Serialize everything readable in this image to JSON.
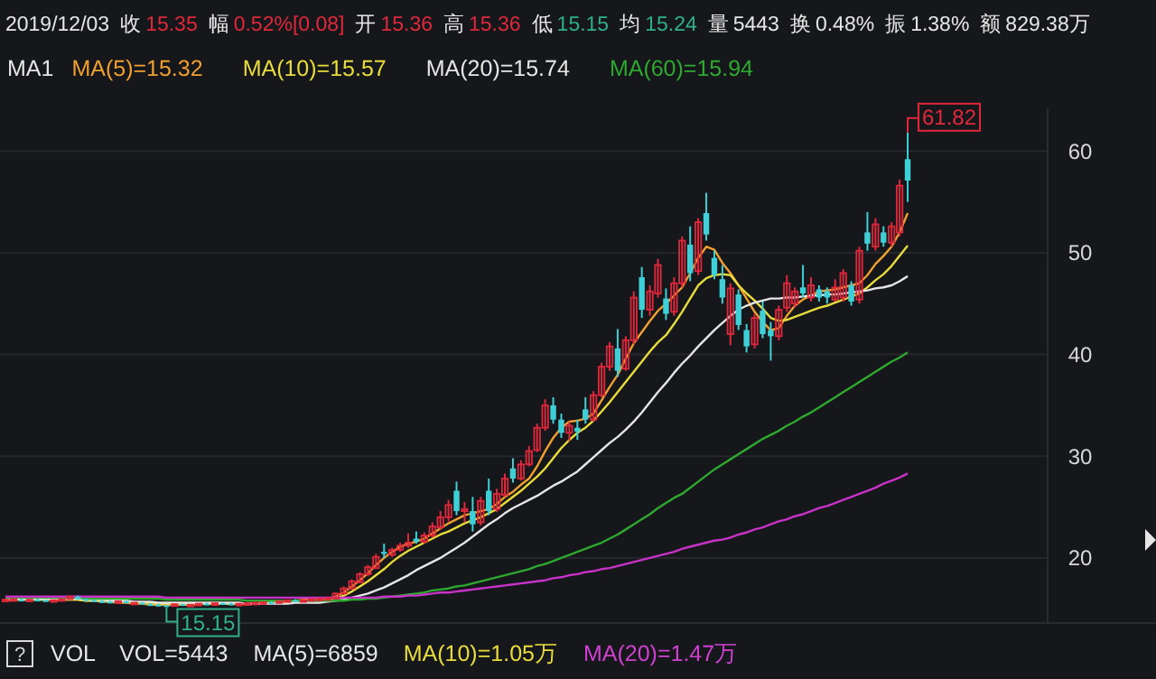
{
  "chart_data": {
    "type": "candlestick",
    "categories": [
      null,
      null,
      null,
      null,
      null,
      null,
      null,
      null,
      null,
      null,
      null,
      null,
      null,
      null,
      null,
      null,
      null,
      null,
      null,
      null,
      null,
      null,
      null,
      null,
      null,
      null,
      null,
      null,
      null,
      null,
      null,
      null,
      null,
      null,
      null,
      null,
      null,
      null,
      null,
      null,
      null,
      null,
      null,
      null,
      null,
      null,
      null,
      null,
      null,
      null,
      null,
      null,
      null,
      null,
      null,
      null,
      null,
      null,
      null,
      null,
      null,
      null,
      null,
      null,
      null,
      null,
      null,
      null,
      null,
      null,
      null,
      null,
      null,
      null,
      null,
      null,
      null,
      null,
      null,
      null,
      null,
      null,
      null,
      null,
      null,
      null,
      null,
      null,
      null,
      null,
      null,
      null,
      null,
      null,
      null,
      null,
      null,
      null,
      null,
      null,
      null,
      null,
      null,
      null,
      null,
      null,
      null,
      null,
      null,
      null,
      null,
      null,
      null
    ],
    "colors": [
      "#e0283c",
      "#e0283c",
      "#3fcfd6",
      "#e0283c",
      "#3fcfd6",
      "#3fcfd6",
      "#e0283c",
      "#e0283c",
      "#e0283c",
      "#3fcfd6",
      "#3fcfd6",
      "#3fcfd6",
      "#3fcfd6",
      "#3fcfd6",
      "#e0283c",
      "#3fcfd6",
      "#e0283c",
      "#3fcfd6",
      "#3fcfd6",
      "#3fcfd6",
      "#3fcfd6",
      "#e0283c",
      "#3fcfd6",
      "#e0283c",
      "#e0283c",
      "#3fcfd6",
      "#e0283c",
      "#3fcfd6",
      "#3fcfd6",
      "#e0283c",
      "#e0283c",
      "#e0283c",
      "#e0283c",
      "#3fcfd6",
      "#e0283c",
      "#e0283c",
      "#3fcfd6",
      "#e0283c",
      "#e0283c",
      "#e0283c",
      "#e0283c",
      "#e0283c",
      "#e0283c",
      "#e0283c",
      "#e0283c",
      "#e0283c",
      "#e0283c",
      "#3fcfd6",
      "#e0283c",
      "#e0283c",
      "#e0283c",
      "#3fcfd6",
      "#e0283c",
      "#e0283c",
      "#e0283c",
      "#e0283c",
      "#3fcfd6",
      "#e0283c",
      "#3fcfd6",
      "#e0283c",
      "#3fcfd6",
      "#e0283c",
      "#e0283c",
      "#3fcfd6",
      "#e0283c",
      "#e0283c",
      "#e0283c",
      "#e0283c",
      "#3fcfd6",
      "#3fcfd6",
      "#e0283c",
      "#3fcfd6",
      "#3fcfd6",
      "#e0283c",
      "#e0283c",
      "#e0283c",
      "#3fcfd6",
      "#e0283c",
      "#e0283c",
      "#3fcfd6",
      "#e0283c",
      "#e0283c",
      "#3fcfd6",
      "#e0283c",
      "#e0283c",
      "#3fcfd6",
      "#e0283c",
      "#3fcfd6",
      "#3fcfd6",
      "#3fcfd6",
      "#e0283c",
      "#3fcfd6",
      "#3fcfd6",
      "#e0283c",
      "#3fcfd6",
      "#3fcfd6",
      "#e0283c",
      "#e0283c",
      "#e0283c",
      "#3fcfd6",
      "#e0283c",
      "#3fcfd6",
      "#3fcfd6",
      "#e0283c",
      "#e0283c",
      "#3fcfd6",
      "#e0283c",
      "#3fcfd6",
      "#e0283c",
      "#3fcfd6",
      "#e0283c",
      "#e0283c",
      "#3fcfd6"
    ],
    "ohlc": [
      [
        15.9,
        16.0,
        15.8,
        15.9
      ],
      [
        15.9,
        16.0,
        15.8,
        15.95
      ],
      [
        15.9,
        16.0,
        15.8,
        15.85
      ],
      [
        15.85,
        15.95,
        15.75,
        15.9
      ],
      [
        15.9,
        16.0,
        15.8,
        15.85
      ],
      [
        15.85,
        15.9,
        15.7,
        15.8
      ],
      [
        15.8,
        15.9,
        15.7,
        15.85
      ],
      [
        15.85,
        16.0,
        15.8,
        15.95
      ],
      [
        15.95,
        16.3,
        15.9,
        16.2
      ],
      [
        16.2,
        16.3,
        15.9,
        15.95
      ],
      [
        15.95,
        16.0,
        15.8,
        15.85
      ],
      [
        15.85,
        15.9,
        15.7,
        15.75
      ],
      [
        15.75,
        15.85,
        15.6,
        15.7
      ],
      [
        15.7,
        15.8,
        15.6,
        15.65
      ],
      [
        15.65,
        15.8,
        15.6,
        15.75
      ],
      [
        15.75,
        15.8,
        15.5,
        15.55
      ],
      [
        15.55,
        15.65,
        15.45,
        15.6
      ],
      [
        15.6,
        15.65,
        15.4,
        15.45
      ],
      [
        15.45,
        15.55,
        15.3,
        15.4
      ],
      [
        15.4,
        15.5,
        15.25,
        15.35
      ],
      [
        15.36,
        15.36,
        15.15,
        15.35
      ],
      [
        15.35,
        15.5,
        15.3,
        15.45
      ],
      [
        15.45,
        15.5,
        15.3,
        15.35
      ],
      [
        15.35,
        15.45,
        15.3,
        15.4
      ],
      [
        15.4,
        15.55,
        15.35,
        15.5
      ],
      [
        15.5,
        15.6,
        15.4,
        15.45
      ],
      [
        15.45,
        15.6,
        15.4,
        15.55
      ],
      [
        15.55,
        15.6,
        15.4,
        15.5
      ],
      [
        15.5,
        15.6,
        15.4,
        15.45
      ],
      [
        15.45,
        15.55,
        15.35,
        15.5
      ],
      [
        15.5,
        15.6,
        15.4,
        15.55
      ],
      [
        15.55,
        15.7,
        15.5,
        15.6
      ],
      [
        15.6,
        15.7,
        15.5,
        15.65
      ],
      [
        15.65,
        15.75,
        15.55,
        15.6
      ],
      [
        15.6,
        15.8,
        15.55,
        15.75
      ],
      [
        15.75,
        15.9,
        15.7,
        15.85
      ],
      [
        15.85,
        15.95,
        15.75,
        15.8
      ],
      [
        15.8,
        15.9,
        15.7,
        15.85
      ],
      [
        15.85,
        16.0,
        15.8,
        15.95
      ],
      [
        15.95,
        16.1,
        15.9,
        16.0
      ],
      [
        16.0,
        16.2,
        15.9,
        16.05
      ],
      [
        16.0,
        16.6,
        15.9,
        16.5
      ],
      [
        16.5,
        17.2,
        16.4,
        17.0
      ],
      [
        17.0,
        17.9,
        16.9,
        17.7
      ],
      [
        17.6,
        18.6,
        17.5,
        18.4
      ],
      [
        18.4,
        19.3,
        18.2,
        19.1
      ],
      [
        19.0,
        20.4,
        18.9,
        20.1
      ],
      [
        20.6,
        21.4,
        20.0,
        20.4
      ],
      [
        20.3,
        21.0,
        20.1,
        20.8
      ],
      [
        20.8,
        21.5,
        20.6,
        21.2
      ],
      [
        21.2,
        22.4,
        21.0,
        21.5
      ],
      [
        21.9,
        22.6,
        21.4,
        21.6
      ],
      [
        21.6,
        22.5,
        21.4,
        22.2
      ],
      [
        22.2,
        23.5,
        22.0,
        23.1
      ],
      [
        23.0,
        24.6,
        22.8,
        24.0
      ],
      [
        24.0,
        25.7,
        23.6,
        25.2
      ],
      [
        26.6,
        27.5,
        24.2,
        24.6
      ],
      [
        24.6,
        25.5,
        23.5,
        24.8
      ],
      [
        24.6,
        26.0,
        22.6,
        23.3
      ],
      [
        23.5,
        26.0,
        23.2,
        25.6
      ],
      [
        26.6,
        27.8,
        24.2,
        24.6
      ],
      [
        24.8,
        26.8,
        24.5,
        26.3
      ],
      [
        26.2,
        28.3,
        26.0,
        27.8
      ],
      [
        28.8,
        29.8,
        27.4,
        27.8
      ],
      [
        27.8,
        29.6,
        27.6,
        29.2
      ],
      [
        29.2,
        31.0,
        29.0,
        30.5
      ],
      [
        30.6,
        33.2,
        30.4,
        32.8
      ],
      [
        32.8,
        35.6,
        32.5,
        35.0
      ],
      [
        35.0,
        35.8,
        33.2,
        33.6
      ],
      [
        33.6,
        34.2,
        31.8,
        32.3
      ],
      [
        32.3,
        33.4,
        31.5,
        33.0
      ],
      [
        32.8,
        33.6,
        31.6,
        32.4
      ],
      [
        34.6,
        35.8,
        33.2,
        33.6
      ],
      [
        33.6,
        36.4,
        33.4,
        36.0
      ],
      [
        36.0,
        39.2,
        35.8,
        38.8
      ],
      [
        38.8,
        41.2,
        38.4,
        40.8
      ],
      [
        40.6,
        42.5,
        37.8,
        38.4
      ],
      [
        38.6,
        41.8,
        38.4,
        41.4
      ],
      [
        41.4,
        46.2,
        41.0,
        45.6
      ],
      [
        47.6,
        48.6,
        43.6,
        44.4
      ],
      [
        44.4,
        46.8,
        43.8,
        46.2
      ],
      [
        46.0,
        49.4,
        45.6,
        48.8
      ],
      [
        45.5,
        46.5,
        43.4,
        44.0
      ],
      [
        44.2,
        47.6,
        43.8,
        47.0
      ],
      [
        47.0,
        51.6,
        46.6,
        51.2
      ],
      [
        50.8,
        52.6,
        47.2,
        48.0
      ],
      [
        48.2,
        53.4,
        47.8,
        53.0
      ],
      [
        53.9,
        55.9,
        51.2,
        51.8
      ],
      [
        49.5,
        50.2,
        47.4,
        47.8
      ],
      [
        47.4,
        48.8,
        45.0,
        45.6
      ],
      [
        42.0,
        47.0,
        40.9,
        46.5
      ],
      [
        45.9,
        46.4,
        42.4,
        42.9
      ],
      [
        42.4,
        43.0,
        40.2,
        40.8
      ],
      [
        41.0,
        44.0,
        40.6,
        43.6
      ],
      [
        44.3,
        45.2,
        41.6,
        42.0
      ],
      [
        42.4,
        43.2,
        39.4,
        41.8
      ],
      [
        41.8,
        44.8,
        41.4,
        44.4
      ],
      [
        44.6,
        47.8,
        44.2,
        47.0
      ],
      [
        45.0,
        46.6,
        44.6,
        46.2
      ],
      [
        46.6,
        48.8,
        45.6,
        46.0
      ],
      [
        45.6,
        47.6,
        45.2,
        46.8
      ],
      [
        46.4,
        46.8,
        45.2,
        45.6
      ],
      [
        46.2,
        46.6,
        45.0,
        45.6
      ],
      [
        45.4,
        47.4,
        45.2,
        46.6
      ],
      [
        45.6,
        48.4,
        45.2,
        48.0
      ],
      [
        46.8,
        47.2,
        44.8,
        45.2
      ],
      [
        45.4,
        50.6,
        45.0,
        50.2
      ],
      [
        52.0,
        54.0,
        50.2,
        50.9
      ],
      [
        50.6,
        53.4,
        50.2,
        52.8
      ],
      [
        52.0,
        52.6,
        50.6,
        51.0
      ],
      [
        51.0,
        53.0,
        50.6,
        52.6
      ],
      [
        52.0,
        57.2,
        51.6,
        56.6
      ],
      [
        59.2,
        61.82,
        55.0,
        57.1
      ]
    ],
    "series": [
      {
        "type": "line",
        "name": "MA(5)=15.32",
        "color": "#f0a030",
        "values": [
          15.9,
          15.9,
          15.9,
          15.9,
          15.9,
          15.9,
          15.9,
          15.9,
          15.9,
          15.9,
          15.8,
          15.8,
          15.7,
          15.7,
          15.6,
          15.6,
          15.5,
          15.5,
          15.4,
          15.4,
          15.4,
          15.4,
          15.4,
          15.4,
          15.5,
          15.5,
          15.5,
          15.5,
          15.5,
          15.5,
          15.5,
          15.5,
          15.6,
          15.6,
          15.7,
          15.8,
          15.8,
          15.9,
          15.9,
          16.0,
          16.0,
          16.2,
          16.6,
          17.2,
          17.8,
          18.5,
          19.3,
          20.0,
          20.6,
          21.1,
          21.4,
          21.6,
          21.9,
          22.4,
          22.9,
          23.4,
          23.8,
          24.2,
          24.4,
          24.6,
          24.8,
          25.3,
          26.0,
          26.5,
          27.2,
          27.8,
          29.0,
          30.5,
          31.8,
          32.8,
          33.4,
          33.5,
          33.7,
          34.2,
          35.5,
          36.8,
          38.0,
          39.6,
          41.1,
          42.2,
          43.3,
          44.3,
          45.0,
          45.8,
          46.6,
          48.0,
          49.5,
          50.6,
          50.3,
          49.0,
          48.0,
          46.8,
          45.5,
          44.2,
          43.2,
          42.4,
          42.6,
          43.8,
          44.8,
          45.4,
          45.8,
          46.2,
          46.3,
          46.4,
          46.6,
          46.8,
          47.0,
          47.8,
          48.9,
          49.7,
          50.6,
          52.0,
          53.9
        ]
      },
      {
        "type": "line",
        "name": "MA(10)=15.57",
        "color": "#e8dc3c",
        "values": [
          15.9,
          15.9,
          15.9,
          15.9,
          15.9,
          15.9,
          15.9,
          15.9,
          15.9,
          15.9,
          15.8,
          15.8,
          15.8,
          15.7,
          15.7,
          15.7,
          15.6,
          15.6,
          15.6,
          15.5,
          15.5,
          15.5,
          15.5,
          15.5,
          15.5,
          15.5,
          15.5,
          15.5,
          15.5,
          15.5,
          15.5,
          15.5,
          15.5,
          15.6,
          15.6,
          15.6,
          15.7,
          15.7,
          15.8,
          15.8,
          15.9,
          16.0,
          16.3,
          16.7,
          17.2,
          17.7,
          18.3,
          18.9,
          19.6,
          20.2,
          20.7,
          21.1,
          21.5,
          21.9,
          22.3,
          22.6,
          23.0,
          23.4,
          23.7,
          24.0,
          24.4,
          24.8,
          25.4,
          26.0,
          26.6,
          27.3,
          28.0,
          28.8,
          29.8,
          30.8,
          31.6,
          32.3,
          32.8,
          33.5,
          34.4,
          35.3,
          36.3,
          37.3,
          38.3,
          39.3,
          40.3,
          41.2,
          41.9,
          43.0,
          44.2,
          45.5,
          46.8,
          47.5,
          47.8,
          47.9,
          47.8,
          46.8,
          46.0,
          45.3,
          44.5,
          43.6,
          43.3,
          43.4,
          43.7,
          44.0,
          44.3,
          44.6,
          44.8,
          45.1,
          45.4,
          45.7,
          46.0,
          46.6,
          47.3,
          47.9,
          48.7,
          49.7,
          50.7
        ]
      },
      {
        "type": "line",
        "name": "MA(20)=15.74",
        "color": "#e6e6e6",
        "values": [
          16.0,
          16.0,
          16.0,
          16.0,
          16.0,
          16.0,
          16.0,
          16.0,
          16.0,
          16.0,
          15.9,
          15.9,
          15.9,
          15.8,
          15.8,
          15.8,
          15.7,
          15.7,
          15.7,
          15.6,
          15.6,
          15.6,
          15.6,
          15.6,
          15.6,
          15.6,
          15.6,
          15.6,
          15.6,
          15.6,
          15.5,
          15.5,
          15.5,
          15.5,
          15.5,
          15.5,
          15.6,
          15.6,
          15.6,
          15.6,
          15.7,
          15.8,
          15.9,
          16.1,
          16.3,
          16.5,
          16.8,
          17.1,
          17.5,
          17.9,
          18.3,
          18.8,
          19.2,
          19.6,
          20.0,
          20.5,
          21.0,
          21.5,
          22.1,
          22.7,
          23.3,
          23.8,
          24.4,
          24.9,
          25.3,
          25.7,
          26.1,
          26.6,
          27.1,
          27.5,
          28.0,
          28.5,
          29.2,
          29.9,
          30.6,
          31.3,
          31.9,
          32.6,
          33.4,
          34.3,
          35.3,
          36.3,
          37.2,
          38.2,
          39.1,
          39.9,
          40.8,
          41.6,
          42.4,
          43.1,
          43.8,
          44.4,
          44.8,
          45.1,
          45.3,
          45.5,
          45.5,
          45.6,
          45.6,
          45.7,
          45.8,
          45.8,
          45.9,
          45.9,
          46.0,
          46.1,
          46.2,
          46.3,
          46.5,
          46.6,
          46.8,
          47.2,
          47.7
        ]
      },
      {
        "type": "line",
        "name": "MA(60)=15.94",
        "color": "#2ea82e",
        "values": [
          16.1,
          16.1,
          16.1,
          16.1,
          16.1,
          16.1,
          16.1,
          16.1,
          16.1,
          16.1,
          16.0,
          16.0,
          16.0,
          16.0,
          16.0,
          16.0,
          16.0,
          16.0,
          16.0,
          16.0,
          15.9,
          15.9,
          15.9,
          15.9,
          15.9,
          15.9,
          15.9,
          15.9,
          15.9,
          15.9,
          15.8,
          15.8,
          15.8,
          15.8,
          15.8,
          15.8,
          15.8,
          15.8,
          15.8,
          15.8,
          15.8,
          15.8,
          15.8,
          15.9,
          15.9,
          16.0,
          16.0,
          16.1,
          16.2,
          16.3,
          16.4,
          16.5,
          16.6,
          16.8,
          16.9,
          17.0,
          17.2,
          17.3,
          17.5,
          17.7,
          17.9,
          18.1,
          18.3,
          18.5,
          18.7,
          18.9,
          19.2,
          19.4,
          19.7,
          20.0,
          20.3,
          20.6,
          20.9,
          21.2,
          21.5,
          21.9,
          22.3,
          22.8,
          23.3,
          23.8,
          24.3,
          24.9,
          25.4,
          25.9,
          26.3,
          26.9,
          27.5,
          28.1,
          28.7,
          29.2,
          29.7,
          30.2,
          30.7,
          31.2,
          31.7,
          32.1,
          32.5,
          33.0,
          33.4,
          33.9,
          34.3,
          34.8,
          35.3,
          35.8,
          36.3,
          36.8,
          37.3,
          37.8,
          38.3,
          38.8,
          39.3,
          39.7,
          40.2
        ]
      },
      {
        "type": "line",
        "color": "#c832c8",
        "values": [
          16.2,
          16.2,
          16.2,
          16.2,
          16.2,
          16.2,
          16.2,
          16.2,
          16.2,
          16.2,
          16.2,
          16.2,
          16.2,
          16.2,
          16.2,
          16.2,
          16.2,
          16.2,
          16.2,
          16.2,
          16.1,
          16.1,
          16.1,
          16.1,
          16.1,
          16.1,
          16.1,
          16.1,
          16.1,
          16.1,
          16.1,
          16.1,
          16.1,
          16.1,
          16.1,
          16.1,
          16.1,
          16.1,
          16.1,
          16.1,
          16.1,
          16.1,
          16.1,
          16.1,
          16.1,
          16.1,
          16.1,
          16.2,
          16.2,
          16.2,
          16.3,
          16.3,
          16.4,
          16.5,
          16.6,
          16.6,
          16.7,
          16.8,
          16.9,
          17.0,
          17.1,
          17.2,
          17.3,
          17.4,
          17.5,
          17.6,
          17.7,
          17.8,
          18.0,
          18.1,
          18.3,
          18.4,
          18.6,
          18.7,
          18.9,
          19.0,
          19.2,
          19.4,
          19.6,
          19.8,
          20.0,
          20.2,
          20.4,
          20.6,
          20.9,
          21.1,
          21.3,
          21.5,
          21.7,
          21.8,
          22.0,
          22.3,
          22.5,
          22.8,
          23.0,
          23.3,
          23.6,
          23.8,
          24.1,
          24.3,
          24.6,
          24.9,
          25.1,
          25.4,
          25.7,
          26.0,
          26.3,
          26.6,
          26.9,
          27.3,
          27.6,
          27.9,
          28.3
        ]
      }
    ],
    "ylim": [
      13.6,
      64.2
    ],
    "yticks": [
      20,
      30,
      40,
      50,
      60
    ],
    "grid": "y",
    "legend": "top left",
    "annotations": [
      "2019/12/03",
      "收",
      "15.35",
      "幅",
      "0.52%[0.08]",
      "开",
      "15.36",
      "高",
      "15.36",
      "低",
      "15.15",
      "均",
      "15.24",
      "量",
      "5443",
      "换",
      "0.48%",
      "振",
      "1.38%",
      "额",
      "829.38万",
      "MA1",
      "?",
      "VOL",
      "VOL=5443",
      "MA(5)=6859",
      "MA(10)=1.05万",
      "MA(20)=1.47万",
      "61.82",
      "15.15"
    ]
  }
}
